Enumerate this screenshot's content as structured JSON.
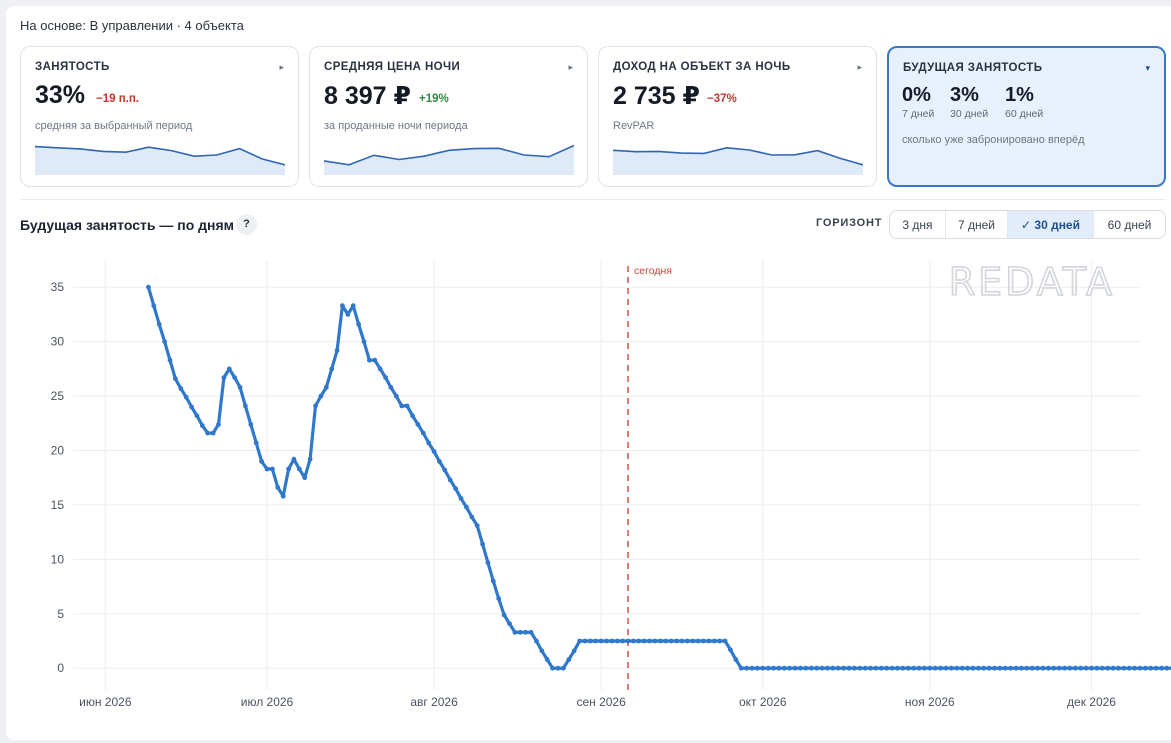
{
  "basis": "На основе: В управлении · 4 объекта",
  "cards": [
    {
      "title": "ЗАНЯТОСТЬ",
      "value": "33%",
      "delta": "−19 п.п.",
      "delta_color": "#c0392b",
      "sub": "средняя за выбранный период",
      "spark": [
        0.74,
        0.66,
        0.58,
        0.4,
        0.34,
        0.7,
        0.46,
        0.06,
        0.14,
        0.6,
        -0.14,
        -0.56
      ]
    },
    {
      "title": "СРЕДНЯЯ ЦЕНА НОЧИ",
      "value": "8 397 ₽",
      "delta": "+19%",
      "delta_color": "#2e8b3d",
      "sub": "за проданные ночи периода",
      "spark": [
        -0.28,
        -0.56,
        0.12,
        -0.18,
        0.06,
        0.48,
        0.6,
        0.62,
        0.14,
        0.02,
        0.82
      ]
    },
    {
      "title": "ДОХОД НА ОБЪЕКТ ЗА НОЧЬ",
      "value": "2 735 ₽",
      "delta": "−37%",
      "delta_color": "#c0392b",
      "sub": "RevPAR",
      "spark": [
        0.48,
        0.38,
        0.4,
        0.28,
        0.26,
        0.66,
        0.5,
        0.14,
        0.16,
        0.46,
        -0.1,
        -0.56
      ]
    },
    {
      "title": "БУДУЩАЯ ЗАНЯТОСТЬ",
      "note": "сколько уже забронировано вперёд",
      "values": [
        {
          "value": "0%",
          "label": "7 дней"
        },
        {
          "value": "3%",
          "label": "30 дней"
        },
        {
          "value": "1%",
          "label": "60 дней"
        }
      ]
    }
  ],
  "section_title": "Будущая занятость — по дням",
  "help": "?",
  "horizon_label": "ГОРИЗОНТ",
  "horizon_options": [
    "3 дня",
    "7 дней",
    "✓ 30 дней",
    "60 дней"
  ],
  "horizon_selected": 2,
  "colors": {
    "accent": "#2f78cc",
    "today_line": "#c9473b",
    "spark": "#2f66b3"
  },
  "chart_data": {
    "type": "line",
    "title": "",
    "xlabel": "",
    "ylabel": "",
    "x_domain": [
      "2026-05-26",
      "2026-12-10"
    ],
    "ylim": [
      -2,
      37.5
    ],
    "yticks": [
      0,
      5,
      10,
      15,
      20,
      25,
      30,
      35
    ],
    "xticks": [
      {
        "date": "2026-06-01",
        "label": "июн 2026"
      },
      {
        "date": "2026-07-01",
        "label": "июл 2026"
      },
      {
        "date": "2026-08-01",
        "label": "авг 2026"
      },
      {
        "date": "2026-09-01",
        "label": "сен 2026"
      },
      {
        "date": "2026-10-01",
        "label": "окт 2026"
      },
      {
        "date": "2026-11-01",
        "label": "ноя 2026"
      },
      {
        "date": "2026-12-01",
        "label": "дек 2026"
      }
    ],
    "today": {
      "date": "2026-09-06",
      "label": "сегодня"
    },
    "watermark": "REDATA",
    "grid": true,
    "series": [
      {
        "x_start": "2026-06-09",
        "values": [
          35.0,
          33.3,
          31.6,
          30.0,
          28.3,
          26.6,
          25.7,
          24.9,
          24.0,
          23.2,
          22.3,
          21.6,
          21.6,
          22.4,
          26.7,
          27.5,
          26.7,
          25.8,
          24.1,
          22.4,
          20.7,
          19.0,
          18.3,
          18.3,
          16.6,
          15.8,
          18.3,
          19.2,
          18.3,
          17.5,
          19.2,
          24.1,
          25.0,
          25.8,
          27.5,
          29.2,
          33.3,
          32.5,
          33.3,
          31.6,
          30.0,
          28.3,
          28.3,
          27.5,
          26.7,
          25.8,
          25.0,
          24.1,
          24.1,
          23.2,
          22.4,
          21.6,
          20.7,
          19.9,
          19.0,
          18.2,
          17.3,
          16.5,
          15.6,
          14.8,
          13.9,
          13.1,
          11.4,
          9.7,
          8.0,
          6.4,
          4.9,
          4.1,
          3.3,
          3.3,
          3.3,
          3.3,
          2.5,
          1.6,
          0.8,
          0.0,
          0.0,
          0.0,
          0.8,
          1.6,
          2.5,
          2.5,
          2.5,
          2.5,
          2.5,
          2.5,
          2.5,
          2.5,
          2.5,
          2.5,
          2.5,
          2.5,
          2.5,
          2.5,
          2.5,
          2.5,
          2.5,
          2.5,
          2.5,
          2.5,
          2.5,
          2.5,
          2.5,
          2.5,
          2.5,
          2.5,
          2.5,
          2.5,
          1.7,
          0.8,
          0.0,
          0,
          0,
          0,
          0,
          0,
          0,
          0,
          0,
          0,
          0,
          0,
          0,
          0,
          0,
          0,
          0,
          0,
          0,
          0,
          0,
          0,
          0,
          0,
          0,
          0,
          0,
          0,
          0,
          0,
          0,
          0,
          0,
          0,
          0,
          0,
          0,
          0,
          0,
          0,
          0,
          0,
          0,
          0,
          0,
          0,
          0,
          0,
          0,
          0,
          0,
          0,
          0,
          0,
          0,
          0,
          0,
          0,
          0,
          0,
          0,
          0,
          0,
          0,
          0,
          0,
          0,
          0,
          0,
          0,
          0,
          0,
          0,
          0,
          0,
          0,
          0,
          0,
          0,
          0,
          0,
          0,
          0,
          0
        ]
      }
    ]
  }
}
